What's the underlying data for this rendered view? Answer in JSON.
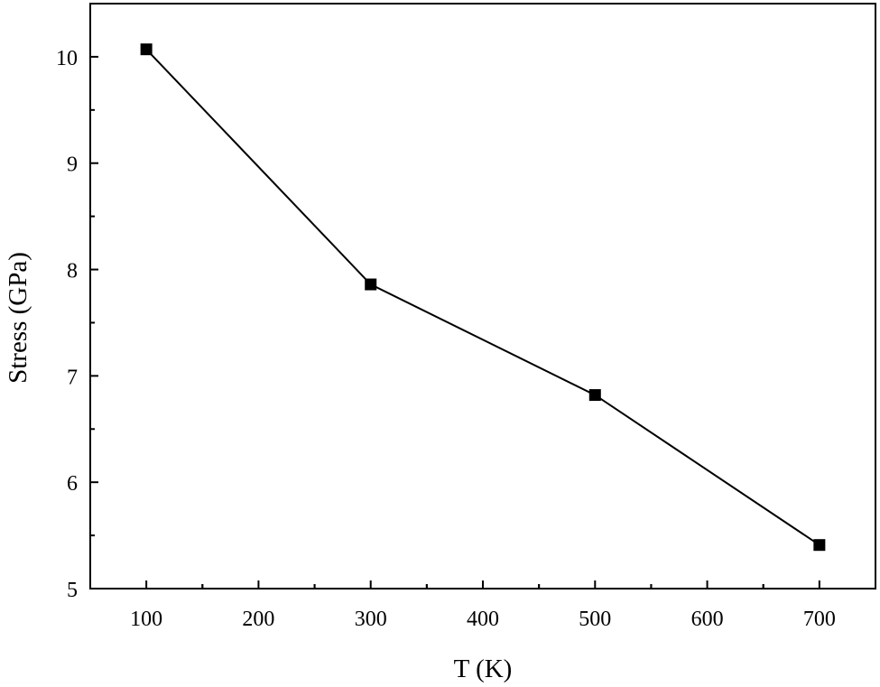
{
  "chart_data": {
    "type": "line",
    "title": "",
    "xlabel": "T (K)",
    "ylabel": "Stress (GPa)",
    "xlim": [
      50,
      750
    ],
    "ylim": [
      5,
      10.5
    ],
    "xticks": [
      100,
      200,
      300,
      400,
      500,
      600,
      700
    ],
    "yticks": [
      5,
      6,
      7,
      8,
      9,
      10
    ],
    "x_tick_labels": [
      "100",
      "200",
      "300",
      "400",
      "500",
      "600",
      "700"
    ],
    "y_tick_labels": [
      "5",
      "6",
      "7",
      "8",
      "9",
      "10"
    ],
    "grid": false,
    "legend": "none",
    "marker": "square",
    "line_color": "#000000",
    "marker_color": "#000000",
    "series": [
      {
        "x": [
          100,
          300,
          500,
          700
        ],
        "values": [
          10.07,
          7.86,
          6.82,
          5.41
        ]
      }
    ]
  }
}
